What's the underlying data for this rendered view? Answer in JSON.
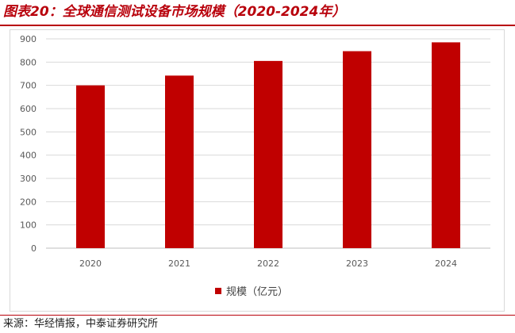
{
  "header": {
    "title": "图表20：全球通信测试设备市场规模（2020-2024年）"
  },
  "footer": {
    "source": "来源：华经情报，中泰证券研究所"
  },
  "colors": {
    "accent": "#b8000b",
    "bar": "#c00000"
  },
  "chart_data": {
    "type": "bar",
    "categories": [
      "2020",
      "2021",
      "2022",
      "2023",
      "2024"
    ],
    "series": [
      {
        "name": "规模（亿元）",
        "values": [
          700,
          742,
          805,
          847,
          885
        ]
      }
    ],
    "ylim": [
      0,
      900
    ],
    "yticks": [
      0,
      100,
      200,
      300,
      400,
      500,
      600,
      700,
      800,
      900
    ],
    "grid": true,
    "legend": "bottom"
  }
}
